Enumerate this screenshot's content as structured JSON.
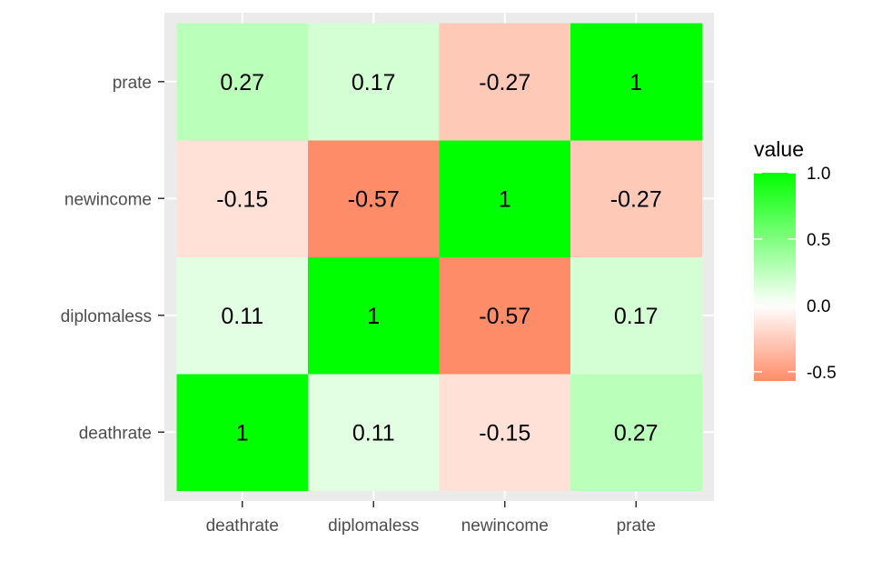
{
  "chart_data": {
    "type": "heatmap",
    "x_categories": [
      "deathrate",
      "diplomaless",
      "newincome",
      "prate"
    ],
    "y_categories": [
      "deathrate",
      "diplomaless",
      "newincome",
      "prate"
    ],
    "values": [
      [
        1,
        0.11,
        -0.15,
        0.27
      ],
      [
        0.11,
        1,
        -0.57,
        0.17
      ],
      [
        -0.15,
        -0.57,
        1,
        -0.27
      ],
      [
        0.27,
        0.17,
        -0.27,
        1
      ]
    ],
    "labels": [
      [
        "1",
        "0.11",
        "-0.15",
        "0.27"
      ],
      [
        "0.11",
        "1",
        "-0.57",
        "0.17"
      ],
      [
        "-0.15",
        "-0.57",
        "1",
        "-0.27"
      ],
      [
        "0.27",
        "0.17",
        "-0.27",
        "1"
      ]
    ],
    "color_scale": {
      "low": "#ff8c69",
      "mid": "#ffffff",
      "high": "#00ff00",
      "midpoint": 0
    },
    "legend": {
      "title": "value",
      "ticks": [
        1.0,
        0.5,
        0.0,
        -0.5
      ],
      "tick_labels": [
        "1.0",
        "0.5",
        "0.0",
        "-0.5"
      ],
      "range": [
        -0.57,
        1
      ],
      "placement": "right"
    },
    "xlabel": "",
    "ylabel": "",
    "panel_background": "#ebebeb",
    "grid": true
  }
}
